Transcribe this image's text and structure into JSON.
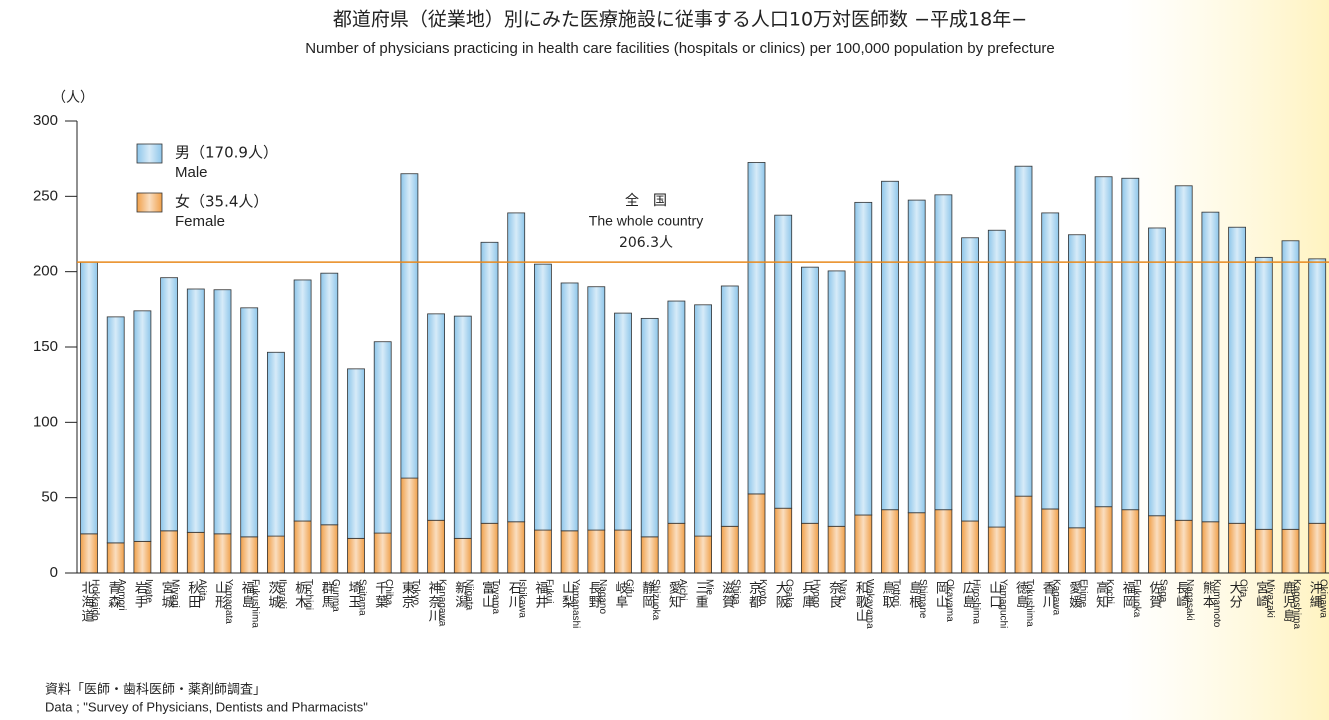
{
  "chart_data": {
    "type": "stacked_bar",
    "title": "都道府県（従業地）別にみた医療施設に従事する人口10万対医師数 −平成18年−",
    "subtitle": "Number of physicians practicing in health care facilities (hospitals or clinics) per 100,000 population by prefecture",
    "y_unit": "（人）",
    "categories": [
      "北海道",
      "青森",
      "岩手",
      "宮城",
      "秋田",
      "山形",
      "福島",
      "茨城",
      "栃木",
      "群馬",
      "埼玉",
      "千葉",
      "東京",
      "神奈川",
      "新潟",
      "富山",
      "石川",
      "福井",
      "山梨",
      "長野",
      "岐阜",
      "静岡",
      "愛知",
      "三重",
      "滋賀",
      "京都",
      "大阪",
      "兵庫",
      "奈良",
      "和歌山",
      "鳥取",
      "島根",
      "岡山",
      "広島",
      "山口",
      "徳島",
      "香川",
      "愛媛",
      "高知",
      "福岡",
      "佐賀",
      "長崎",
      "熊本",
      "大分",
      "宮崎",
      "鹿児島",
      "沖縄"
    ],
    "categories_en": [
      "Hokkaido",
      "Aomori",
      "Iwate",
      "Miyagi",
      "Akita",
      "Yamagata",
      "Fukushima",
      "Ibaraki",
      "Tochigi",
      "Gunma",
      "Saitama",
      "Chiba",
      "Tokyo",
      "Kanagawa",
      "Niigata",
      "Toyama",
      "Ishikawa",
      "Fukui",
      "Yamanashi",
      "Nagano",
      "Gifu",
      "Shizuoka",
      "Aichi",
      "Mie",
      "Shiga",
      "Kyoto",
      "Osaka",
      "Hyogo",
      "Nara",
      "Wakayama",
      "Tottori",
      "Shimane",
      "Okayama",
      "Hiroshima",
      "Yamaguchi",
      "Tokushima",
      "Kagawa",
      "Ehime",
      "Kochi",
      "Fukuoka",
      "Saga",
      "Nagasaki",
      "Kumamoto",
      "Oita",
      "Miyazaki",
      "Kagoshima",
      "Okinawa"
    ],
    "series": [
      {
        "name": "女（35.4人）",
        "name_en": "Female",
        "color": "#f0a04a",
        "values": [
          26,
          20,
          21,
          28,
          27,
          26,
          24,
          24.5,
          34.5,
          32,
          23,
          26.5,
          63,
          35,
          23,
          33,
          34,
          28.5,
          28,
          28.5,
          28.5,
          24,
          33,
          24.5,
          31,
          52.5,
          43,
          33,
          31,
          38.5,
          42,
          40,
          42,
          34.5,
          30.5,
          51,
          42.5,
          30,
          44,
          42,
          38,
          35,
          34,
          33,
          29,
          29,
          33
        ]
      },
      {
        "name": "男（170.9人）",
        "name_en": "Male",
        "color": "#8ec6ea",
        "values": [
          180.5,
          150,
          153,
          168,
          161.5,
          162,
          152,
          122,
          160,
          167,
          112.5,
          127,
          202,
          137,
          147.5,
          186.5,
          205,
          176.5,
          164.5,
          161.5,
          144,
          145,
          147.5,
          153.5,
          159.5,
          220,
          194.5,
          170,
          169.5,
          207.5,
          218,
          207.5,
          209,
          188,
          197,
          219,
          196.5,
          194.5,
          219,
          220,
          191,
          222,
          205.5,
          196.5,
          180.5,
          191.5,
          175.5
        ]
      }
    ],
    "reference_line": {
      "value": 206.3,
      "color": "#e8891c",
      "label_ja": "全　国",
      "label_en": "The whole country",
      "label_value": "206.3人"
    },
    "ylim": [
      0,
      300
    ],
    "yticks": [
      0,
      50,
      100,
      150,
      200,
      250,
      300
    ],
    "grid": false,
    "legend": "top-left",
    "source_ja": "資料「医師・歯科医師・薬剤師調査」",
    "source_en": "Data ; \"Survey of Physicians, Dentists and Pharmacists\""
  }
}
